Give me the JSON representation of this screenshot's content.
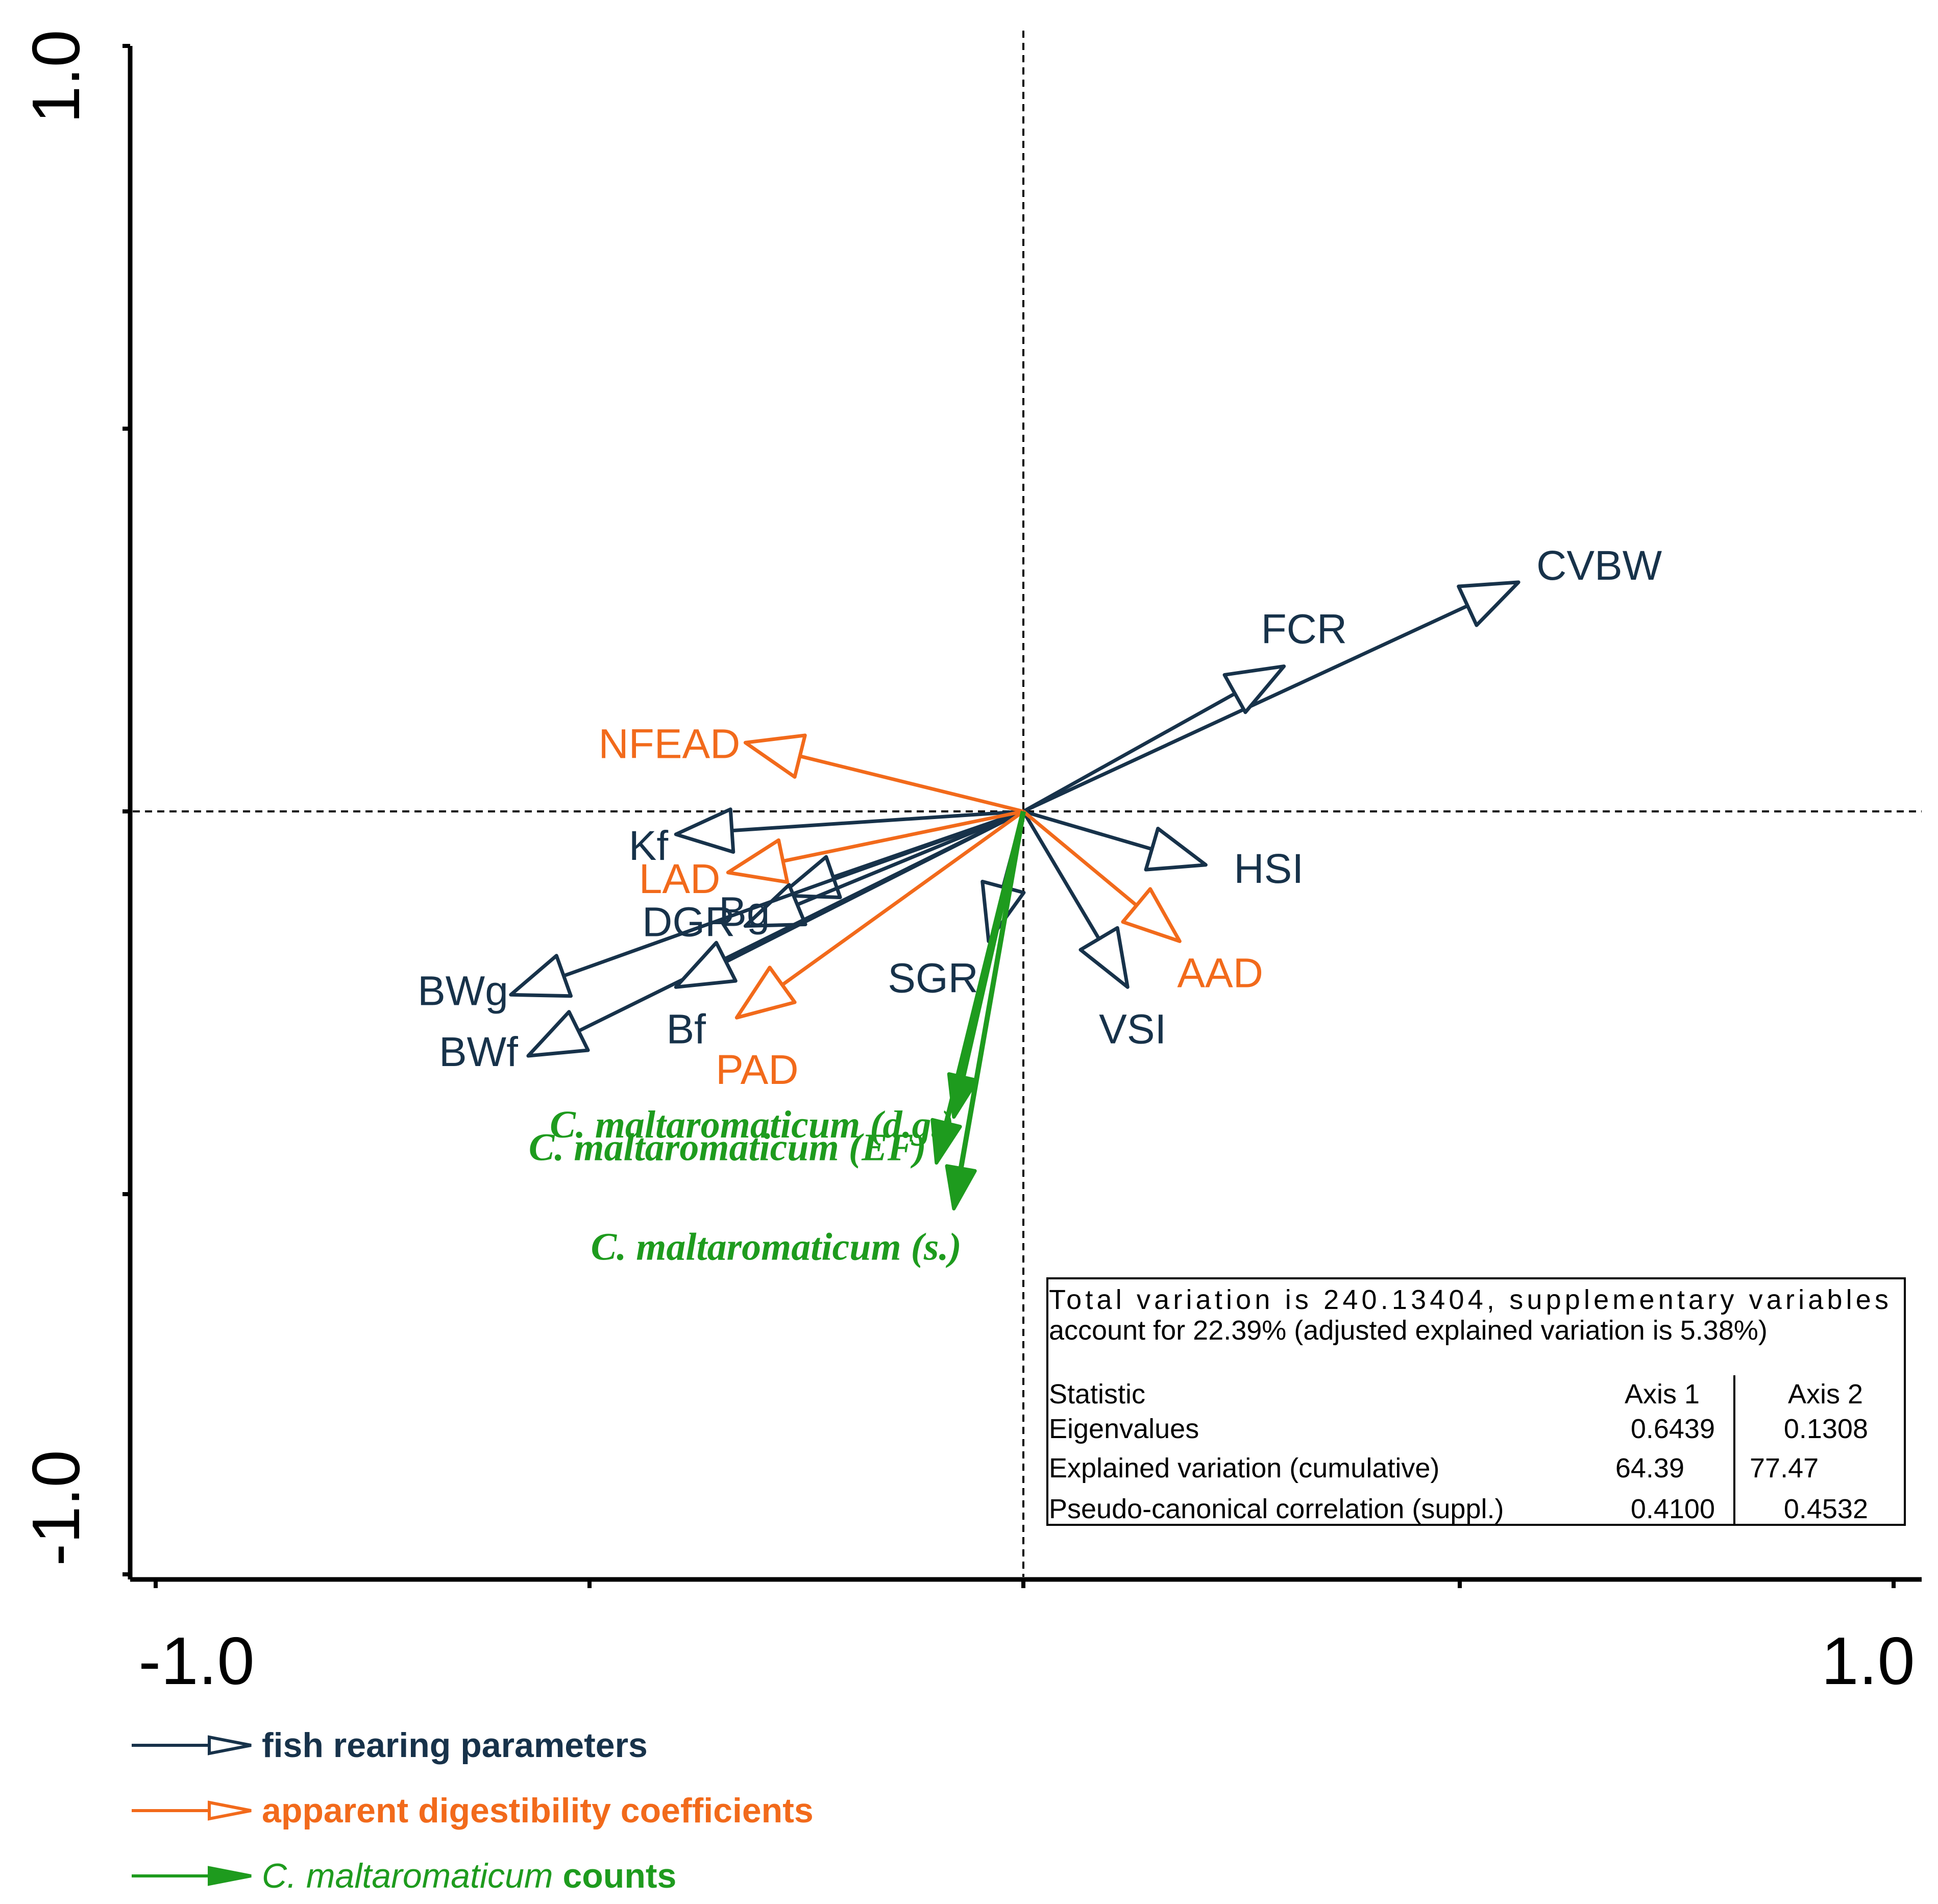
{
  "chart_data": {
    "type": "biplot",
    "xlim": [
      -1.0,
      1.0
    ],
    "ylim": [
      -1.0,
      1.0
    ],
    "x_tick_labels": [
      "-1.0",
      "1.0"
    ],
    "y_tick_labels": [
      "1.0",
      "-1.0"
    ],
    "colors": {
      "fish": "#17324a",
      "adc": "#f26a1b",
      "counts": "#1e9b1e"
    },
    "series": [
      {
        "name": "fish rearing parameters",
        "color_key": "fish",
        "vectors": [
          {
            "label": "CVBW",
            "x": 0.57,
            "y": 0.3
          },
          {
            "label": "FCR",
            "x": 0.3,
            "y": 0.19
          },
          {
            "label": "HSI",
            "x": 0.21,
            "y": -0.07
          },
          {
            "label": "VSI",
            "x": 0.12,
            "y": -0.23
          },
          {
            "label": "SGR",
            "x": -0.04,
            "y": -0.17
          },
          {
            "label": "Kf",
            "x": -0.4,
            "y": -0.03
          },
          {
            "label": "Bg",
            "x": -0.28,
            "y": -0.11
          },
          {
            "label": "DGR",
            "x": -0.32,
            "y": -0.15
          },
          {
            "label": "BWg",
            "x": -0.59,
            "y": -0.24
          },
          {
            "label": "BWf",
            "x": -0.57,
            "y": -0.32
          },
          {
            "label": "Bf",
            "x": -0.4,
            "y": -0.23
          }
        ]
      },
      {
        "name": "apparent digestibility coefficients",
        "color_key": "adc",
        "vectors": [
          {
            "label": "NFEAD",
            "x": -0.32,
            "y": 0.09
          },
          {
            "label": "LAD",
            "x": -0.34,
            "y": -0.08
          },
          {
            "label": "PAD",
            "x": -0.33,
            "y": -0.27
          },
          {
            "label": "AAD",
            "x": 0.18,
            "y": -0.17
          }
        ]
      },
      {
        "name": "C. maltaromaticum counts",
        "color_key": "counts",
        "vectors": [
          {
            "label": "C. maltaromaticum (d.g.)",
            "x": -0.08,
            "y": -0.4
          },
          {
            "label": "C. maltaromaticum (EF)",
            "x": -0.1,
            "y": -0.46
          },
          {
            "label": "C. maltaromaticum (s.)",
            "x": -0.08,
            "y": -0.52
          }
        ]
      }
    ],
    "stats": {
      "note_line1": "Total  variation  is  240.13404,  supplementary  variables",
      "note_line2": "account for 22.39% (adjusted explained variation is 5.38%)",
      "header": [
        "Statistic",
        "Axis 1",
        "Axis 2"
      ],
      "rows": [
        [
          "Eigenvalues",
          "0.6439",
          "0.1308"
        ],
        [
          "Explained variation (cumulative)",
          "64.39",
          "77.47"
        ],
        [
          "Pseudo-canonical correlation (suppl.)",
          "0.4100",
          "0.4532"
        ]
      ]
    },
    "legend": [
      {
        "text": "fish rearing parameters",
        "italic_prefix": "",
        "color_key": "fish",
        "head": "open"
      },
      {
        "text": "apparent digestibility coefficients",
        "italic_prefix": "",
        "color_key": "adc",
        "head": "open"
      },
      {
        "text": " counts",
        "italic_prefix": "C. maltaromaticum",
        "color_key": "counts",
        "head": "filled"
      }
    ]
  }
}
